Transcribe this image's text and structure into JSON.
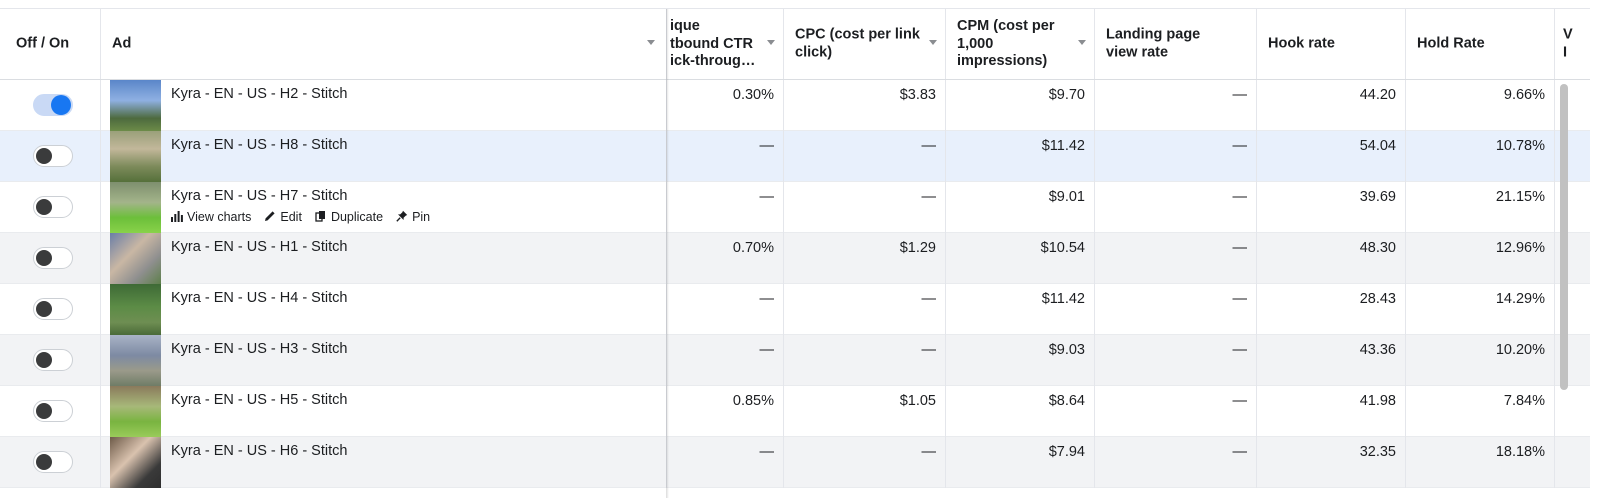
{
  "columns": {
    "toggle": "Off / On",
    "ad": "Ad",
    "unique_ctr": "ique\ntbound CTR\nick-throug…",
    "cpc": "CPC (cost per link click)",
    "cpm": "CPM (cost per 1,000 impressions)",
    "lpv_rate": "Landing page view rate",
    "hook_rate": "Hook rate",
    "hold_rate": "Hold Rate",
    "clipped": "V\nI"
  },
  "row_actions": {
    "view_charts": "View charts",
    "edit": "Edit",
    "duplicate": "Duplicate",
    "pin": "Pin"
  },
  "rows": [
    {
      "name": "Kyra - EN - US - H2 - Stitch",
      "on": true,
      "ctr": "0.30%",
      "cpc": "$3.83",
      "cpm": "$9.70",
      "lpv": "—",
      "hook": "44.20",
      "hold": "9.66%"
    },
    {
      "name": "Kyra - EN - US - H8 - Stitch",
      "on": false,
      "ctr": "—",
      "cpc": "—",
      "cpm": "$11.42",
      "lpv": "—",
      "hook": "54.04",
      "hold": "10.78%"
    },
    {
      "name": "Kyra - EN - US - H7 - Stitch",
      "on": false,
      "ctr": "—",
      "cpc": "—",
      "cpm": "$9.01",
      "lpv": "—",
      "hook": "39.69",
      "hold": "21.15%"
    },
    {
      "name": "Kyra - EN - US - H1 - Stitch",
      "on": false,
      "ctr": "0.70%",
      "cpc": "$1.29",
      "cpm": "$10.54",
      "lpv": "—",
      "hook": "48.30",
      "hold": "12.96%"
    },
    {
      "name": "Kyra - EN - US - H4 - Stitch",
      "on": false,
      "ctr": "—",
      "cpc": "—",
      "cpm": "$11.42",
      "lpv": "—",
      "hook": "28.43",
      "hold": "14.29%"
    },
    {
      "name": "Kyra - EN - US - H3 - Stitch",
      "on": false,
      "ctr": "—",
      "cpc": "—",
      "cpm": "$9.03",
      "lpv": "—",
      "hook": "43.36",
      "hold": "10.20%"
    },
    {
      "name": "Kyra - EN - US - H5 - Stitch",
      "on": false,
      "ctr": "0.85%",
      "cpc": "$1.05",
      "cpm": "$8.64",
      "lpv": "—",
      "hook": "41.98",
      "hold": "7.84%"
    },
    {
      "name": "Kyra - EN - US - H6 - Stitch",
      "on": false,
      "ctr": "—",
      "cpc": "—",
      "cpm": "$7.94",
      "lpv": "—",
      "hook": "32.35",
      "hold": "18.18%"
    }
  ],
  "colors": {
    "accent": "#1877f2",
    "row_hover": "#e8f0fc",
    "row_alt": "#f2f3f5",
    "border": "#e4e6eb",
    "text": "#1c1e21"
  }
}
